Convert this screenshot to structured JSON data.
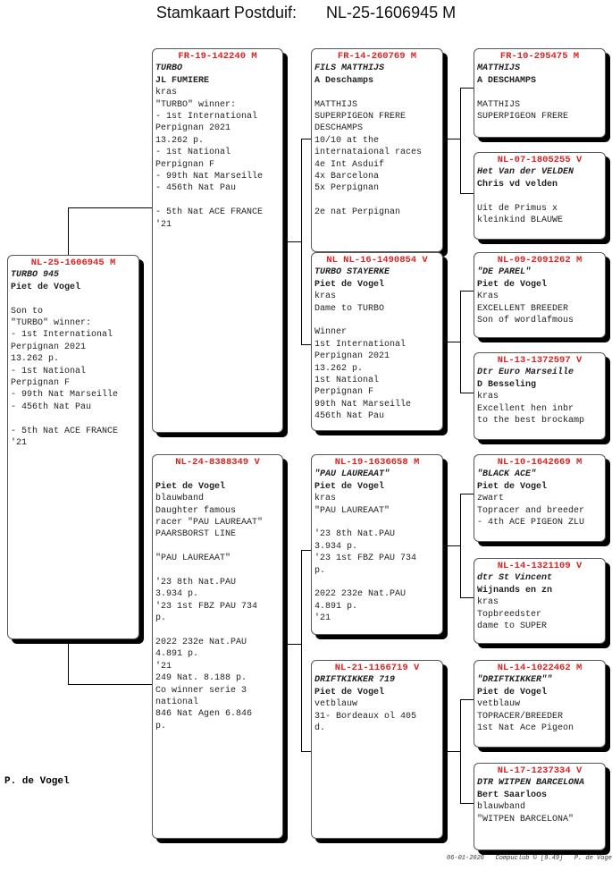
{
  "header": {
    "label": "Stamkaart Postduif:",
    "ring": "NL-25-1606945 M"
  },
  "pedigree": {
    "subject": {
      "ring": "NL-25-1606945 M",
      "name": "TURBO 945",
      "owner": "Piet de Vogel",
      "lines": [
        "",
        "Son to",
        "\"TURBO\" winner:",
        "- 1st International",
        "Perpignan 2021",
        "13.262 p.",
        "- 1st National",
        "Perpignan F",
        "- 99th Nat Marseille",
        "- 456th Nat Pau",
        "",
        "- 5th Nat ACE FRANCE",
        "'21"
      ]
    },
    "sire": {
      "ring": "FR-19-142240 M",
      "name": "TURBO",
      "owner": "JL FUMIERE",
      "lines": [
        "kras",
        "\"TURBO\" winner:",
        "- 1st International",
        "Perpignan 2021",
        "13.262 p.",
        "- 1st National",
        "Perpignan F",
        "- 99th Nat Marseille",
        "- 456th Nat Pau",
        "",
        "- 5th Nat ACE FRANCE",
        "'21"
      ]
    },
    "dam": {
      "ring": "NL-24-8388349 V",
      "name": "",
      "owner": "Piet de Vogel",
      "lines": [
        "blauwband",
        "Daughter famous",
        "racer \"PAU LAUREAAT\"",
        "PAARSBORST LINE",
        "",
        "\"PAU LAUREAAT\"",
        "",
        "'23 8th Nat.PAU",
        "3.934 p.",
        "'23 1st FBZ PAU 734",
        "p.",
        "",
        "2022 232e Nat.PAU",
        "4.891 p.",
        "'21",
        "249 Nat. 8.188 p.",
        "Co winner serie 3",
        "national",
        "846 Nat Agen 6.846",
        "p."
      ]
    },
    "sire_sire": {
      "ring": "FR-14-260769 M",
      "name": "FILS MATTHIJS",
      "owner": "A Deschamps",
      "lines": [
        "",
        "MATTHIJS",
        "SUPERPIGEON FRERE",
        "DESCHAMPS",
        "10/10 at the",
        "internataional races",
        "4e Int Asduif",
        "4x Barcelona",
        "5x Perpignan",
        "",
        "2e nat Perpignan"
      ]
    },
    "sire_dam": {
      "ring": "NL  NL-16-1490854 V",
      "name": "TURBO STAYERKE",
      "owner": "Piet de Vogel",
      "lines": [
        "kras",
        "Dame to TURBO",
        "",
        "Winner",
        "1st International",
        "Perpignan 2021",
        "13.262 p.",
        "1st National",
        "Perpignan F",
        "99th Nat Marseille",
        "456th Nat Pau"
      ]
    },
    "dam_sire": {
      "ring": "NL-19-1636658 M",
      "name": "\"PAU LAUREAAT\"",
      "owner": "Piet de Vogel",
      "lines": [
        "kras",
        "\"PAU LAUREAAT\"",
        "",
        "'23 8th Nat.PAU",
        "3.934 p.",
        "'23 1st FBZ PAU 734",
        "p.",
        "",
        "2022 232e Nat.PAU",
        "4.891 p.",
        "'21"
      ]
    },
    "dam_dam": {
      "ring": "NL-21-1166719 V",
      "name": "DRIFTKIKKER 719",
      "owner": "Piet de Vogel",
      "lines": [
        "vetblauw",
        "31- Bordeaux ol 405",
        "d."
      ]
    },
    "sss": {
      "ring": "FR-10-295475 M",
      "name": "MATTHIJS",
      "owner": "A DESCHAMPS",
      "lines": [
        "",
        "MATTHIJS",
        "SUPERPIGEON FRERE"
      ]
    },
    "ssd": {
      "ring": "NL-07-1805255 V",
      "name": "Het Van der VELDEN",
      "owner": "Chris vd velden",
      "lines": [
        "",
        "Uit de Primus x",
        "kleinkind BLAUWE"
      ]
    },
    "sds": {
      "ring": "NL-09-2091262 M",
      "name": "\"DE PAREL\"",
      "owner": "Piet de Vogel",
      "lines": [
        "Kras",
        "EXCELLENT BREEDER",
        "Son of wordlafmous"
      ]
    },
    "sdd": {
      "ring": "NL-13-1372597 V",
      "name": "Dtr Euro Marseille",
      "owner": "D Besseling",
      "lines": [
        "kras",
        "Excellent hen inbr",
        "to the best brockamp"
      ]
    },
    "dss": {
      "ring": "NL-10-1642669 M",
      "name": "\"BLACK ACE\"",
      "owner": "Piet de Vogel",
      "lines": [
        "zwart",
        "Topracer and breeder",
        "- 4th ACE PIGEON ZLU"
      ]
    },
    "dsd": {
      "ring": "NL-14-1321109 V",
      "name": "dtr St Vincent",
      "owner": "Wijnands en zn",
      "lines": [
        "kras",
        "Topbreedster",
        "dame to SUPER"
      ]
    },
    "dds": {
      "ring": "NL-14-1022462 M",
      "name": "\"DRIFTKIKKER\"\"",
      "owner": "Piet de Vogel",
      "lines": [
        "vetblauw",
        "TOPRACER/BREEDER",
        "1st Nat Ace Pigeon"
      ]
    },
    "ddd": {
      "ring": "NL-17-1237334 V",
      "name": "DTR WITPEN BARCELONA",
      "owner": "Bert Saarloos",
      "lines": [
        "blauwband",
        "\"WITPEN BARCELONA\""
      ]
    }
  },
  "breeder": "P. de Vogel",
  "footer": "06-01-2026   Compuclub © [9.49]   P. de Vogel",
  "colors": {
    "ring": "#dd2222",
    "shadow": "#000000"
  }
}
